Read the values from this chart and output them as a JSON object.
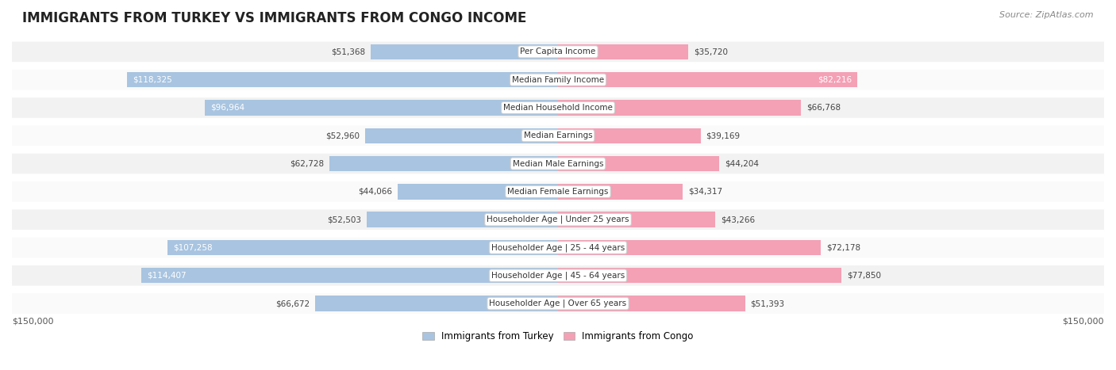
{
  "title": "IMMIGRANTS FROM TURKEY VS IMMIGRANTS FROM CONGO INCOME",
  "source": "Source: ZipAtlas.com",
  "categories": [
    "Per Capita Income",
    "Median Family Income",
    "Median Household Income",
    "Median Earnings",
    "Median Male Earnings",
    "Median Female Earnings",
    "Householder Age | Under 25 years",
    "Householder Age | 25 - 44 years",
    "Householder Age | 45 - 64 years",
    "Householder Age | Over 65 years"
  ],
  "turkey_values": [
    51368,
    118325,
    96964,
    52960,
    62728,
    44066,
    52503,
    107258,
    114407,
    66672
  ],
  "congo_values": [
    35720,
    82216,
    66768,
    39169,
    44204,
    34317,
    43266,
    72178,
    77850,
    51393
  ],
  "turkey_color": "#a8c4e0",
  "congo_color": "#f4a0b5",
  "turkey_label": "Immigrants from Turkey",
  "congo_label": "Immigrants from Congo",
  "turkey_text_color_threshold": 80000,
  "congo_text_color_threshold": 80000,
  "max_value": 150000,
  "x_tick_label_left": "$150,000",
  "x_tick_label_right": "$150,000",
  "row_bg_color": "#f0f0f0",
  "row_alt_bg_color": "#f8f8f8",
  "label_box_color": "#ffffff",
  "label_box_edge_color": "#dddddd"
}
